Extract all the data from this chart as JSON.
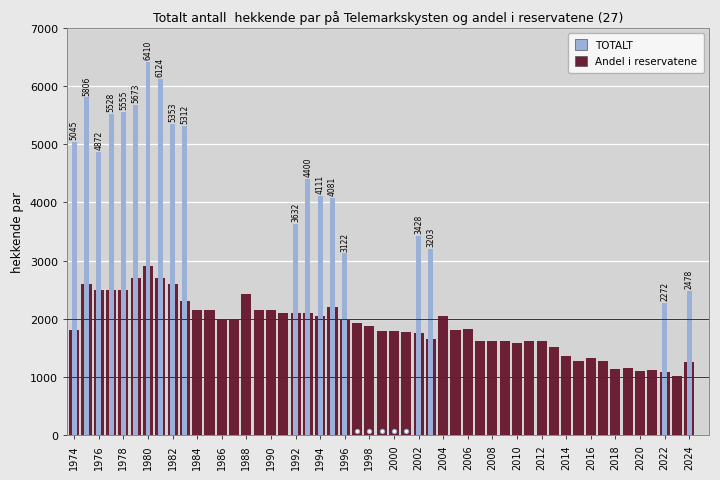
{
  "title": "Totalt antall  hekkende par på Telemarkskysten og andel i reservatene (27)",
  "ylabel": "hekkende par",
  "years": [
    1974,
    1975,
    1976,
    1977,
    1978,
    1979,
    1980,
    1981,
    1982,
    1983,
    1984,
    1985,
    1986,
    1987,
    1988,
    1989,
    1990,
    1991,
    1992,
    1993,
    1994,
    1995,
    1996,
    1997,
    1998,
    1999,
    2000,
    2001,
    2002,
    2003,
    2004,
    2005,
    2006,
    2007,
    2008,
    2009,
    2010,
    2011,
    2012,
    2013,
    2014,
    2015,
    2016,
    2017,
    2018,
    2019,
    2020,
    2021,
    2022,
    2023,
    2024
  ],
  "totalt": [
    5045,
    5806,
    4872,
    5528,
    5555,
    5673,
    6410,
    6124,
    5353,
    5312,
    0,
    0,
    0,
    0,
    0,
    0,
    0,
    0,
    3632,
    4400,
    4111,
    4081,
    3122,
    0,
    0,
    0,
    0,
    0,
    3428,
    3203,
    0,
    0,
    0,
    0,
    0,
    0,
    0,
    0,
    0,
    0,
    0,
    0,
    0,
    0,
    0,
    0,
    0,
    0,
    2272,
    0,
    2478
  ],
  "reservatene": [
    1800,
    2600,
    2500,
    2500,
    2500,
    2700,
    2900,
    2700,
    2600,
    2300,
    2150,
    2150,
    2000,
    2000,
    2430,
    2150,
    2150,
    2100,
    2100,
    2100,
    2050,
    2200,
    1980,
    1920,
    1870,
    1790,
    1790,
    1770,
    1760,
    1650,
    2050,
    1810,
    1830,
    1620,
    1620,
    1620,
    1590,
    1620,
    1620,
    1520,
    1360,
    1280,
    1330,
    1280,
    1140,
    1150,
    1100,
    1120,
    1080,
    1020,
    1260
  ],
  "xlim_min": 1973.4,
  "xlim_max": 2025.6,
  "ylim": [
    0,
    7000
  ],
  "totalt_color": "#9ab0d8",
  "reservatene_color": "#6b2035",
  "bg_color": "#d4d4d4",
  "fig_bg_color": "#e8e8e8",
  "grid_color": "#ffffff",
  "legend_totalt": "TOTALT",
  "legend_reservatene": "Andel i reservatene",
  "yticks": [
    0,
    1000,
    2000,
    3000,
    4000,
    5000,
    6000,
    7000
  ],
  "zero_circle_years": [
    1997,
    1998,
    1999,
    2000,
    2001
  ],
  "annotate_map_years": [
    1974,
    1975,
    1976,
    1977,
    1978,
    1979,
    1980,
    1981,
    1982,
    1983,
    1992,
    1993,
    1994,
    1995,
    1996,
    2002,
    2003,
    2022,
    2024
  ],
  "annotate_map_vals": [
    5045,
    5806,
    4872,
    5528,
    5555,
    5673,
    6410,
    6124,
    5353,
    5312,
    3632,
    4400,
    4111,
    4081,
    3122,
    3428,
    3203,
    2272,
    2478
  ]
}
